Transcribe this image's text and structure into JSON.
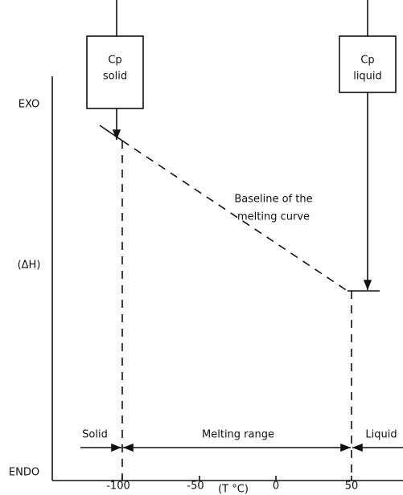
{
  "y_axis": {
    "top_label": "EXO",
    "middle_label": "(ΔH)",
    "bottom_label": "ENDO"
  },
  "x_axis": {
    "title": "(T °C)",
    "tick_labels": [
      "-100",
      "-50",
      "0",
      "50"
    ]
  },
  "boxes": [
    {
      "line1": "Cp",
      "line2": "solid"
    },
    {
      "line1": "Cp",
      "line2": "liquid"
    }
  ],
  "annotation": {
    "line1": "Baseline of the",
    "line2": "melting curve"
  },
  "ranges": {
    "left": "Solid",
    "middle": "Melting range",
    "right": "Liquid"
  }
}
